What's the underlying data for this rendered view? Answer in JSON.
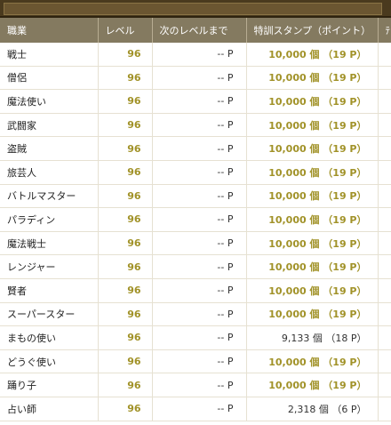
{
  "table": {
    "headers": [
      "職業",
      "レベル",
      "次のレベルまで",
      "特訓スタンプ（ポイント）",
      "ﾃ"
    ],
    "rows": [
      {
        "job": "戦士",
        "level": "96",
        "next": "-- P",
        "stamp": "10,000 個 （19 P）",
        "max": true
      },
      {
        "job": "僧侶",
        "level": "96",
        "next": "-- P",
        "stamp": "10,000 個 （19 P）",
        "max": true
      },
      {
        "job": "魔法使い",
        "level": "96",
        "next": "-- P",
        "stamp": "10,000 個 （19 P）",
        "max": true
      },
      {
        "job": "武闘家",
        "level": "96",
        "next": "-- P",
        "stamp": "10,000 個 （19 P）",
        "max": true
      },
      {
        "job": "盗賊",
        "level": "96",
        "next": "-- P",
        "stamp": "10,000 個 （19 P）",
        "max": true
      },
      {
        "job": "旅芸人",
        "level": "96",
        "next": "-- P",
        "stamp": "10,000 個 （19 P）",
        "max": true
      },
      {
        "job": "バトルマスター",
        "level": "96",
        "next": "-- P",
        "stamp": "10,000 個 （19 P）",
        "max": true
      },
      {
        "job": "パラディン",
        "level": "96",
        "next": "-- P",
        "stamp": "10,000 個 （19 P）",
        "max": true
      },
      {
        "job": "魔法戦士",
        "level": "96",
        "next": "-- P",
        "stamp": "10,000 個 （19 P）",
        "max": true
      },
      {
        "job": "レンジャー",
        "level": "96",
        "next": "-- P",
        "stamp": "10,000 個 （19 P）",
        "max": true
      },
      {
        "job": "賢者",
        "level": "96",
        "next": "-- P",
        "stamp": "10,000 個 （19 P）",
        "max": true
      },
      {
        "job": "スーパースター",
        "level": "96",
        "next": "-- P",
        "stamp": "10,000 個 （19 P）",
        "max": true
      },
      {
        "job": "まもの使い",
        "level": "96",
        "next": "-- P",
        "stamp": "9,133 個 （18 P）",
        "max": false
      },
      {
        "job": "どうぐ使い",
        "level": "96",
        "next": "-- P",
        "stamp": "10,000 個 （19 P）",
        "max": true
      },
      {
        "job": "踊り子",
        "level": "96",
        "next": "-- P",
        "stamp": "10,000 個 （19 P）",
        "max": true
      },
      {
        "job": "占い師",
        "level": "96",
        "next": "-- P",
        "stamp": "2,318 個 （6 P）",
        "max": false
      }
    ]
  },
  "colors": {
    "header_bg": "#847a60",
    "header_text": "#ffffff",
    "value_gold": "#a19228",
    "frame_brown": "#4a3a1e"
  }
}
